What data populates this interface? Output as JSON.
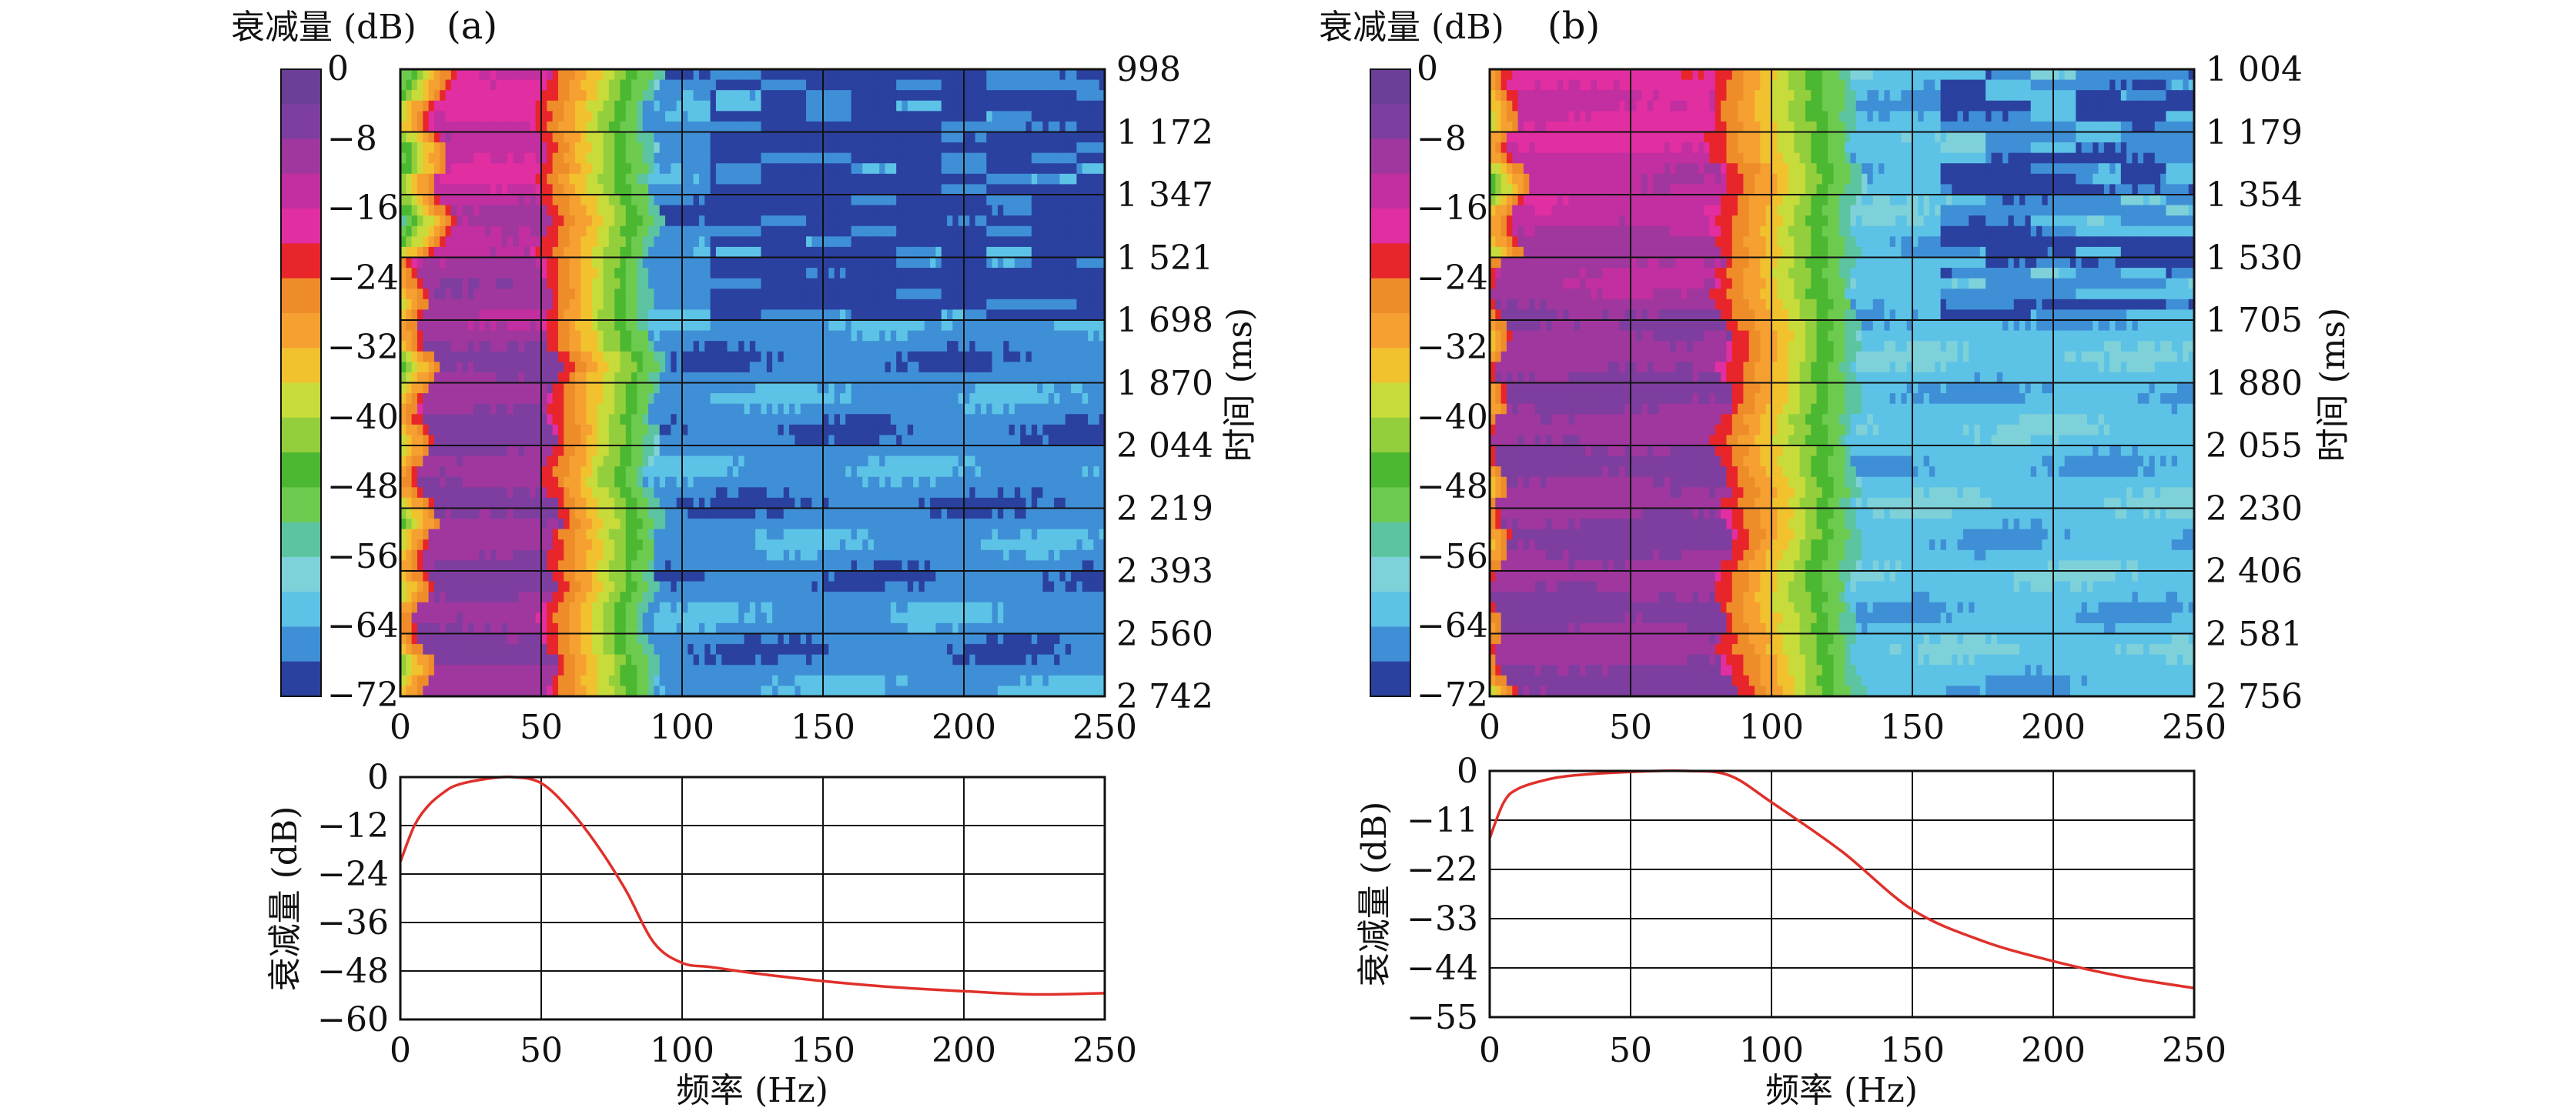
{
  "colorbar": {
    "colors": [
      "#2a41a0",
      "#3f8fd6",
      "#5cc3e6",
      "#7fd1d9",
      "#5cc4a0",
      "#6ccb4f",
      "#4cb832",
      "#93cf3c",
      "#c7dc3a",
      "#f2c12e",
      "#f5a030",
      "#ee8c2a",
      "#e8252a",
      "#e12ea0",
      "#c22fa0",
      "#a0379e",
      "#7e3e9f",
      "#6b3e98"
    ]
  },
  "chart_data": [
    {
      "id": "a",
      "type": "heatmap",
      "panel_label": "(a)",
      "colorbar_label": "衰减量 (dB)",
      "colorbar_ticks": [
        "0",
        "−8",
        "−16",
        "−24",
        "−32",
        "−40",
        "−48",
        "−56",
        "−64",
        "−72"
      ],
      "colorbar_range": [
        -72,
        0
      ],
      "x_ticks": [
        "0",
        "50",
        "100",
        "150",
        "200",
        "250"
      ],
      "xlim": [
        0,
        250
      ],
      "time_ticks": [
        "998",
        "1 172",
        "1 347",
        "1 521",
        "1 698",
        "1 870",
        "2 044",
        "2 219",
        "2 393",
        "2 560",
        "2 742"
      ],
      "ylabel_right": "时间 (ms)",
      "passband_hz": {
        "core_lo": 15,
        "core_hi": 50,
        "edge_hi": 60,
        "stopband_start": 100
      },
      "stopband_floor_db": -66
    },
    {
      "id": "a-line",
      "type": "line",
      "ylabel": "衰减量 (dB)",
      "xlabel": "频率 (Hz)",
      "x_ticks": [
        "0",
        "50",
        "100",
        "150",
        "200",
        "250"
      ],
      "y_ticks": [
        "0",
        "−12",
        "−24",
        "−36",
        "−48",
        "−60"
      ],
      "xlim": [
        0,
        250
      ],
      "ylim": [
        -60,
        0
      ],
      "series": [
        {
          "name": "attenuation",
          "color": "#e0302a",
          "x": [
            0,
            5,
            10,
            15,
            20,
            30,
            40,
            50,
            60,
            70,
            80,
            90,
            100,
            110,
            125,
            150,
            175,
            200,
            225,
            250
          ],
          "y": [
            -21,
            -12,
            -7,
            -4,
            -2,
            -0.5,
            0,
            -1.5,
            -8,
            -17,
            -28,
            -41,
            -46,
            -47,
            -48.5,
            -50.5,
            -52,
            -53,
            -53.8,
            -53.5
          ]
        }
      ]
    },
    {
      "id": "b",
      "type": "heatmap",
      "panel_label": "(b)",
      "colorbar_label": "衰减量 (dB)",
      "colorbar_ticks": [
        "0",
        "−8",
        "−16",
        "−24",
        "−32",
        "−40",
        "−48",
        "−56",
        "−64",
        "−72"
      ],
      "colorbar_range": [
        -72,
        0
      ],
      "x_ticks": [
        "0",
        "50",
        "100",
        "150",
        "200",
        "250"
      ],
      "xlim": [
        0,
        250
      ],
      "time_ticks": [
        "1 004",
        "1 179",
        "1 354",
        "1 530",
        "1 705",
        "1 880",
        "2 055",
        "2 230",
        "2 406",
        "2 581",
        "2 756"
      ],
      "ylabel_right": "时间 (ms)",
      "passband_hz": {
        "core_lo": 10,
        "core_hi": 80,
        "edge_hi": 100,
        "stopband_start": 150
      },
      "stopband_floor_db": -62
    },
    {
      "id": "b-line",
      "type": "line",
      "ylabel": "衰减量 (dB)",
      "xlabel": "频率 (Hz)",
      "x_ticks": [
        "0",
        "50",
        "100",
        "150",
        "200",
        "250"
      ],
      "y_ticks": [
        "0",
        "−11",
        "−22",
        "−33",
        "−44",
        "−55"
      ],
      "xlim": [
        0,
        250
      ],
      "ylim": [
        -55,
        0
      ],
      "series": [
        {
          "name": "attenuation",
          "color": "#e0302a",
          "x": [
            0,
            5,
            10,
            20,
            30,
            50,
            70,
            85,
            100,
            125,
            150,
            175,
            200,
            225,
            250
          ],
          "y": [
            -15,
            -7,
            -4,
            -2,
            -1,
            -0.2,
            0,
            -1,
            -7,
            -18,
            -31,
            -38,
            -42.5,
            -46,
            -48.5
          ]
        }
      ]
    }
  ]
}
